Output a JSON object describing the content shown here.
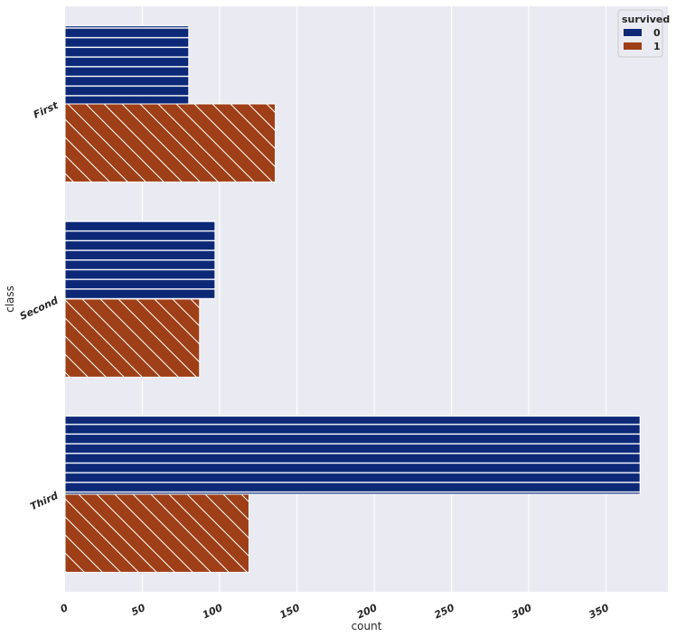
{
  "chart_data": {
    "type": "bar",
    "orientation": "horizontal",
    "categories": [
      "First",
      "Second",
      "Third"
    ],
    "series": [
      {
        "name": "0",
        "values": [
          80,
          97,
          372
        ],
        "color": "#0c2877",
        "hatch": "horizontal-lines"
      },
      {
        "name": "1",
        "values": [
          136,
          87,
          119
        ],
        "color": "#9e3f17",
        "hatch": "diagonal-lines"
      }
    ],
    "xlabel": "count",
    "ylabel": "class",
    "xticks": [
      0,
      50,
      100,
      150,
      200,
      250,
      300,
      350
    ],
    "xlim": [
      0,
      390
    ],
    "grid": true,
    "legend": {
      "title": "survived",
      "position": "top-right"
    },
    "background_color": "#eaeaf2"
  }
}
